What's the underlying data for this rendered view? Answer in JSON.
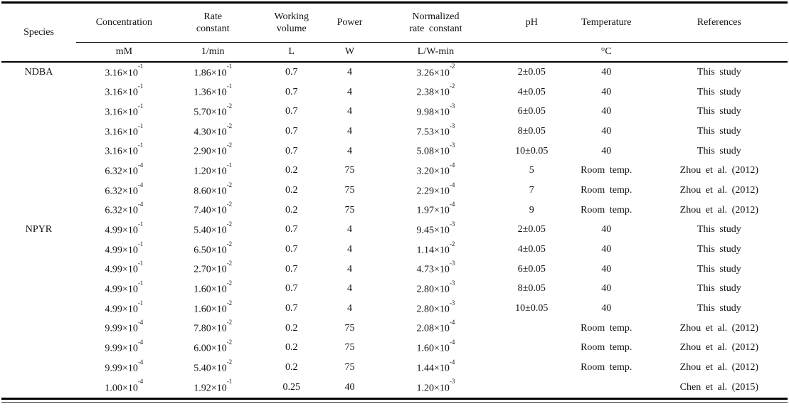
{
  "page": {
    "background_color": "#ffffff",
    "text_color": "#111111",
    "rule_color": "#000000"
  },
  "table": {
    "columns": [
      {
        "label": "Species",
        "unit": ""
      },
      {
        "label": "Concentration",
        "unit": "mM"
      },
      {
        "label": "Rate\nconstant",
        "unit": "1/min"
      },
      {
        "label": "Working\nvolume",
        "unit": "L"
      },
      {
        "label": "Power",
        "unit": "W"
      },
      {
        "label": "Normalized\nrate constant",
        "unit": "L/W-min"
      },
      {
        "label": "pH",
        "unit": ""
      },
      {
        "label": "Temperature",
        "unit": "°C"
      },
      {
        "label": "References",
        "unit": ""
      }
    ],
    "rows": [
      [
        "NDBA",
        "3.16×10^-1",
        "1.86×10^-1",
        "0.7",
        "4",
        "3.26×10^-2",
        "2±0.05",
        "40",
        "This study"
      ],
      [
        "",
        "3.16×10^-1",
        "1.36×10^-1",
        "0.7",
        "4",
        "2.38×10^-2",
        "4±0.05",
        "40",
        "This study"
      ],
      [
        "",
        "3.16×10^-1",
        "5.70×10^-2",
        "0.7",
        "4",
        "9.98×10^-3",
        "6±0.05",
        "40",
        "This study"
      ],
      [
        "",
        "3.16×10^-1",
        "4.30×10^-2",
        "0.7",
        "4",
        "7.53×10^-3",
        "8±0.05",
        "40",
        "This study"
      ],
      [
        "",
        "3.16×10^-1",
        "2.90×10^-2",
        "0.7",
        "4",
        "5.08×10^-3",
        "10±0.05",
        "40",
        "This study"
      ],
      [
        "",
        "6.32×10^-4",
        "1.20×10^-1",
        "0.2",
        "75",
        "3.20×10^-4",
        "5",
        "Room temp.",
        "Zhou et al. (2012)"
      ],
      [
        "",
        "6.32×10^-4",
        "8.60×10^-2",
        "0.2",
        "75",
        "2.29×10^-4",
        "7",
        "Room temp.",
        "Zhou et al. (2012)"
      ],
      [
        "",
        "6.32×10^-4",
        "7.40×10^-2",
        "0.2",
        "75",
        "1.97×10^-4",
        "9",
        "Room temp.",
        "Zhou et al. (2012)"
      ],
      [
        "NPYR",
        "4.99×10^-1",
        "5.40×10^-2",
        "0.7",
        "4",
        "9.45×10^-3",
        "2±0.05",
        "40",
        "This study"
      ],
      [
        "",
        "4.99×10^-1",
        "6.50×10^-2",
        "0.7",
        "4",
        "1.14×10^-2",
        "4±0.05",
        "40",
        "This study"
      ],
      [
        "",
        "4.99×10^-1",
        "2.70×10^-2",
        "0.7",
        "4",
        "4.73×10^-3",
        "6±0.05",
        "40",
        "This study"
      ],
      [
        "",
        "4.99×10^-1",
        "1.60×10^-2",
        "0.7",
        "4",
        "2.80×10^-3",
        "8±0.05",
        "40",
        "This study"
      ],
      [
        "",
        "4.99×10^-1",
        "1.60×10^-2",
        "0.7",
        "4",
        "2.80×10^-3",
        "10±0.05",
        "40",
        "This study"
      ],
      [
        "",
        "9.99×10^-4",
        "7.80×10^-2",
        "0.2",
        "75",
        "2.08×10^-4",
        "",
        "Room temp.",
        "Zhou et al. (2012)"
      ],
      [
        "",
        "9.99×10^-4",
        "6.00×10^-2",
        "0.2",
        "75",
        "1.60×10^-4",
        "",
        "Room temp.",
        "Zhou et al. (2012)"
      ],
      [
        "",
        "9.99×10^-4",
        "5.40×10^-2",
        "0.2",
        "75",
        "1.44×10^-4",
        "",
        "Room temp.",
        "Zhou et al. (2012)"
      ],
      [
        "",
        "1.00×10^-4",
        "1.92×10^-1",
        "0.25",
        "40",
        "1.20×10^-3",
        "",
        "",
        "Chen et al. (2015)"
      ]
    ]
  }
}
